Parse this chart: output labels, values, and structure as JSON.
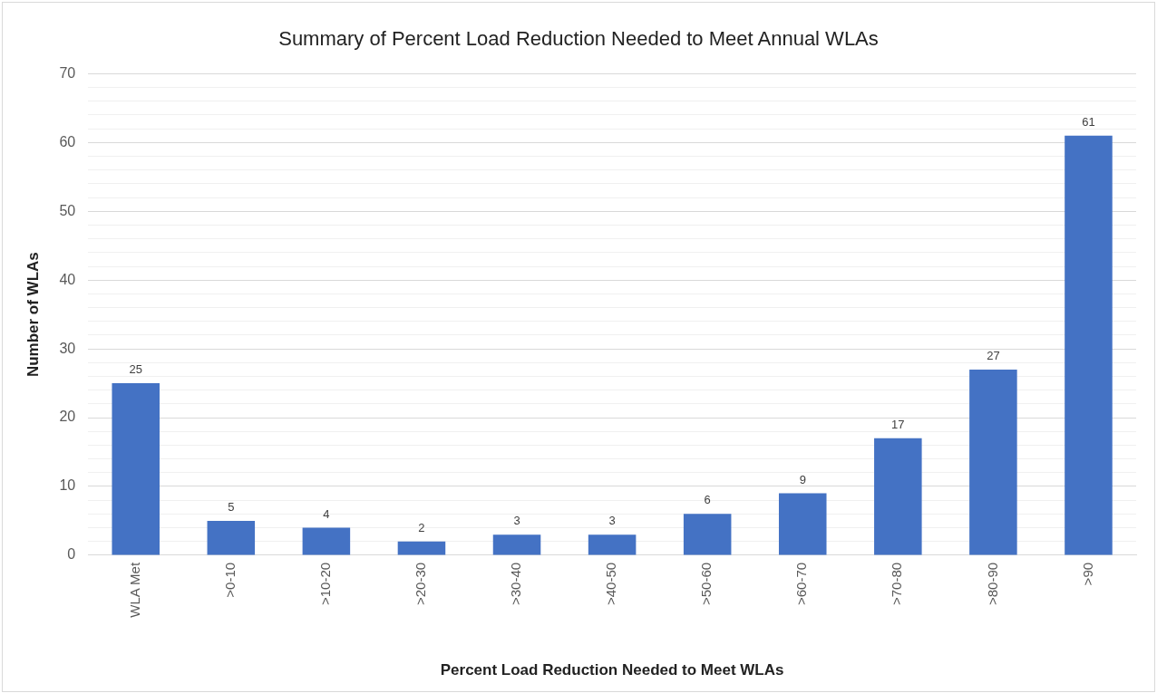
{
  "chart_data": {
    "type": "bar",
    "title": "Summary of Percent Load Reduction Needed to Meet Annual WLAs",
    "xlabel": "Percent Load Reduction Needed to Meet WLAs",
    "ylabel": "Number of WLAs",
    "categories": [
      "WLA Met",
      ">0-10",
      ">10-20",
      ">20-30",
      ">30-40",
      ">40-50",
      ">50-60",
      ">60-70",
      ">70-80",
      ">80-90",
      ">90"
    ],
    "values": [
      25,
      5,
      4,
      2,
      3,
      3,
      6,
      9,
      17,
      27,
      61
    ],
    "color": "#4472c4",
    "data_labels": true,
    "grid": "y",
    "legend": false,
    "ylim": [
      0,
      70
    ],
    "yticks": [
      0,
      {
        "value": 2,
        "label": null
      },
      {
        "value": 4,
        "label": null
      },
      {
        "value": 6,
        "label": null
      },
      {
        "value": 8,
        "label": null
      },
      10,
      {
        "value": 12,
        "label": null
      },
      {
        "value": 14,
        "label": null
      },
      {
        "value": 16,
        "label": null
      },
      {
        "value": 18,
        "label": null
      },
      20,
      {
        "value": 22,
        "label": null
      },
      {
        "value": 24,
        "label": null
      },
      {
        "value": 26,
        "label": null
      },
      {
        "value": 28,
        "label": null
      },
      30,
      {
        "value": 32,
        "label": null
      },
      {
        "value": 34,
        "label": null
      },
      {
        "value": 36,
        "label": null
      },
      {
        "value": 38,
        "label": null
      },
      40,
      {
        "value": 42,
        "label": null
      },
      {
        "value": 44,
        "label": null
      },
      {
        "value": 46,
        "label": null
      },
      {
        "value": 48,
        "label": null
      },
      50,
      {
        "value": 52,
        "label": null
      },
      {
        "value": 54,
        "label": null
      },
      {
        "value": 56,
        "label": null
      },
      {
        "value": 58,
        "label": null
      },
      60,
      {
        "value": 62,
        "label": null
      },
      {
        "value": 64,
        "label": null
      },
      {
        "value": 66,
        "label": null
      },
      {
        "value": 68,
        "label": null
      },
      70
    ]
  }
}
